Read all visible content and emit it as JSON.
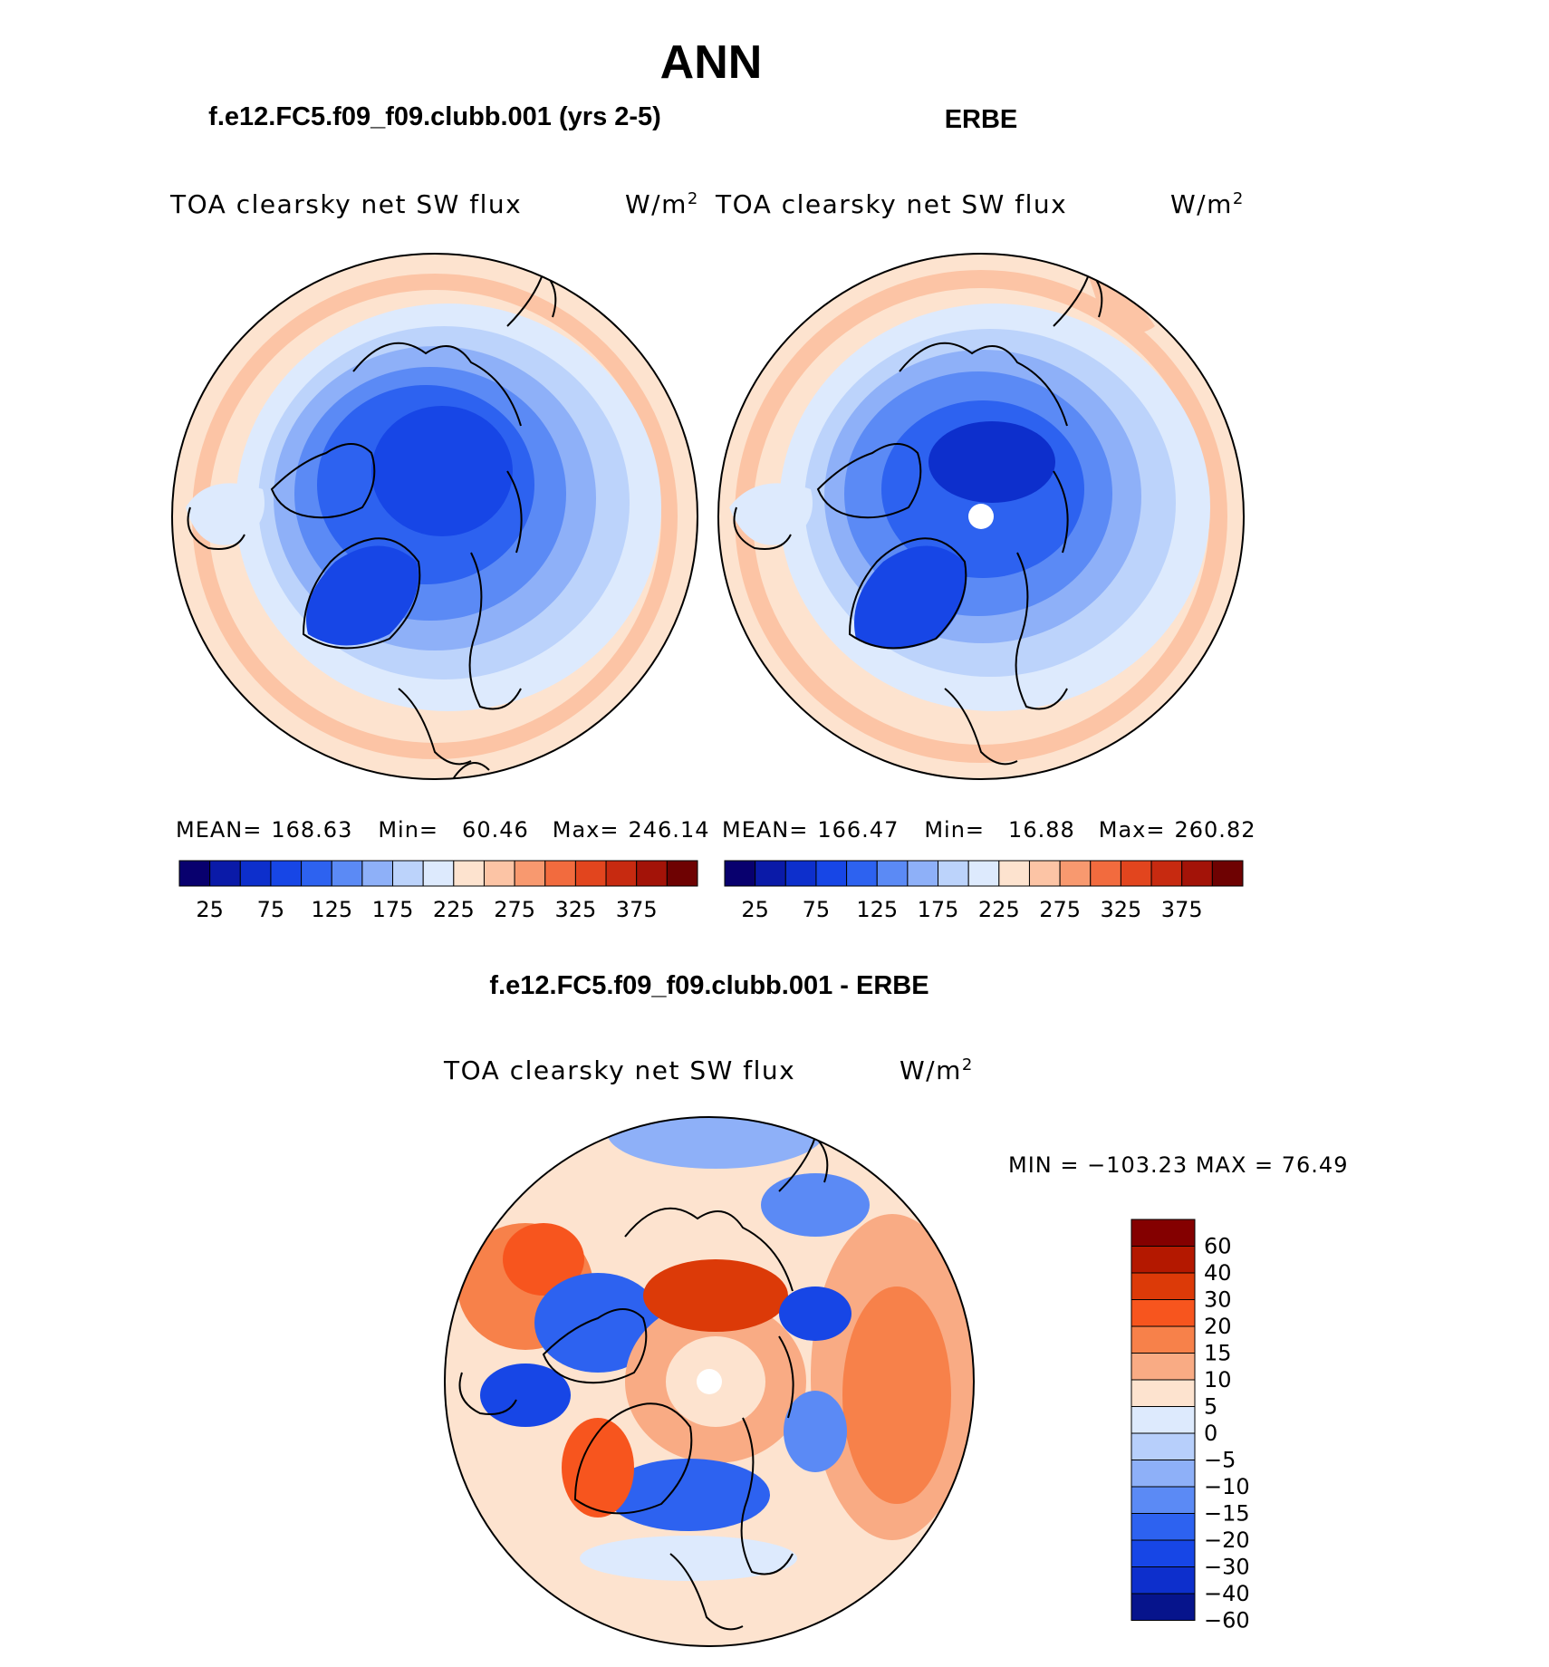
{
  "page_title": "ANN",
  "panels": [
    {
      "id": "model",
      "case_title": "f.e12.FC5.f09_f09.clubb.001 (yrs 2-5)",
      "variable": "TOA clearsky net SW flux",
      "units": "W/m",
      "units_sup": "2",
      "mean_label": "MEAN=",
      "mean": "168.63",
      "min_label": "Min=",
      "min": "60.46",
      "max_label": "Max=",
      "max": "246.14",
      "field_note": "polar stereographic map of the Arctic; deep blue over central Arctic and Greenland, grading to light blue and then pale orange toward the circular edge"
    },
    {
      "id": "obs",
      "case_title": "ERBE",
      "variable": "TOA clearsky net SW flux",
      "units": "W/m",
      "units_sup": "2",
      "mean_label": "MEAN=",
      "mean": "166.47",
      "min_label": "Min=",
      "min": "16.88",
      "max_label": "Max=",
      "max": "260.82",
      "field_note": "similar pattern with a white missing-data dot at the pole"
    }
  ],
  "top_colorbar": {
    "colors": [
      "#08006e",
      "#0a1aa8",
      "#0d2fcc",
      "#1746e6",
      "#2d62f0",
      "#5b8af5",
      "#8eb0f8",
      "#bcd3fb",
      "#ddeafd",
      "#fde3cf",
      "#fcc4a5",
      "#f8996f",
      "#f26b3e",
      "#e2451e",
      "#c72a10",
      "#a31308",
      "#6e0202"
    ],
    "tick_labels": [
      "25",
      "75",
      "125",
      "175",
      "225",
      "275",
      "325",
      "375"
    ]
  },
  "diff": {
    "title": "f.e12.FC5.f09_f09.clubb.001 - ERBE",
    "variable": "TOA clearsky net SW flux",
    "units": "W/m",
    "units_sup": "2",
    "minmax": "MIN =  −103.23  MAX =   76.49",
    "colorbar": {
      "colors": [
        "#840000",
        "#b41800",
        "#dc3a08",
        "#f7551e",
        "#f7814a",
        "#f9ab84",
        "#fde3cf",
        "#ddeafd",
        "#b7cffb",
        "#8eb0f8",
        "#5b8af5",
        "#2d62f0",
        "#1746e6",
        "#0d2fcc",
        "#06148c"
      ],
      "levels": [
        "60",
        "40",
        "30",
        "20",
        "15",
        "10",
        "5",
        "0",
        "−5",
        "−10",
        "−15",
        "−20",
        "−30",
        "−40",
        "−60"
      ]
    }
  },
  "palette": {
    "land_outline": "#000000",
    "pole_mask": "#ffffff"
  }
}
